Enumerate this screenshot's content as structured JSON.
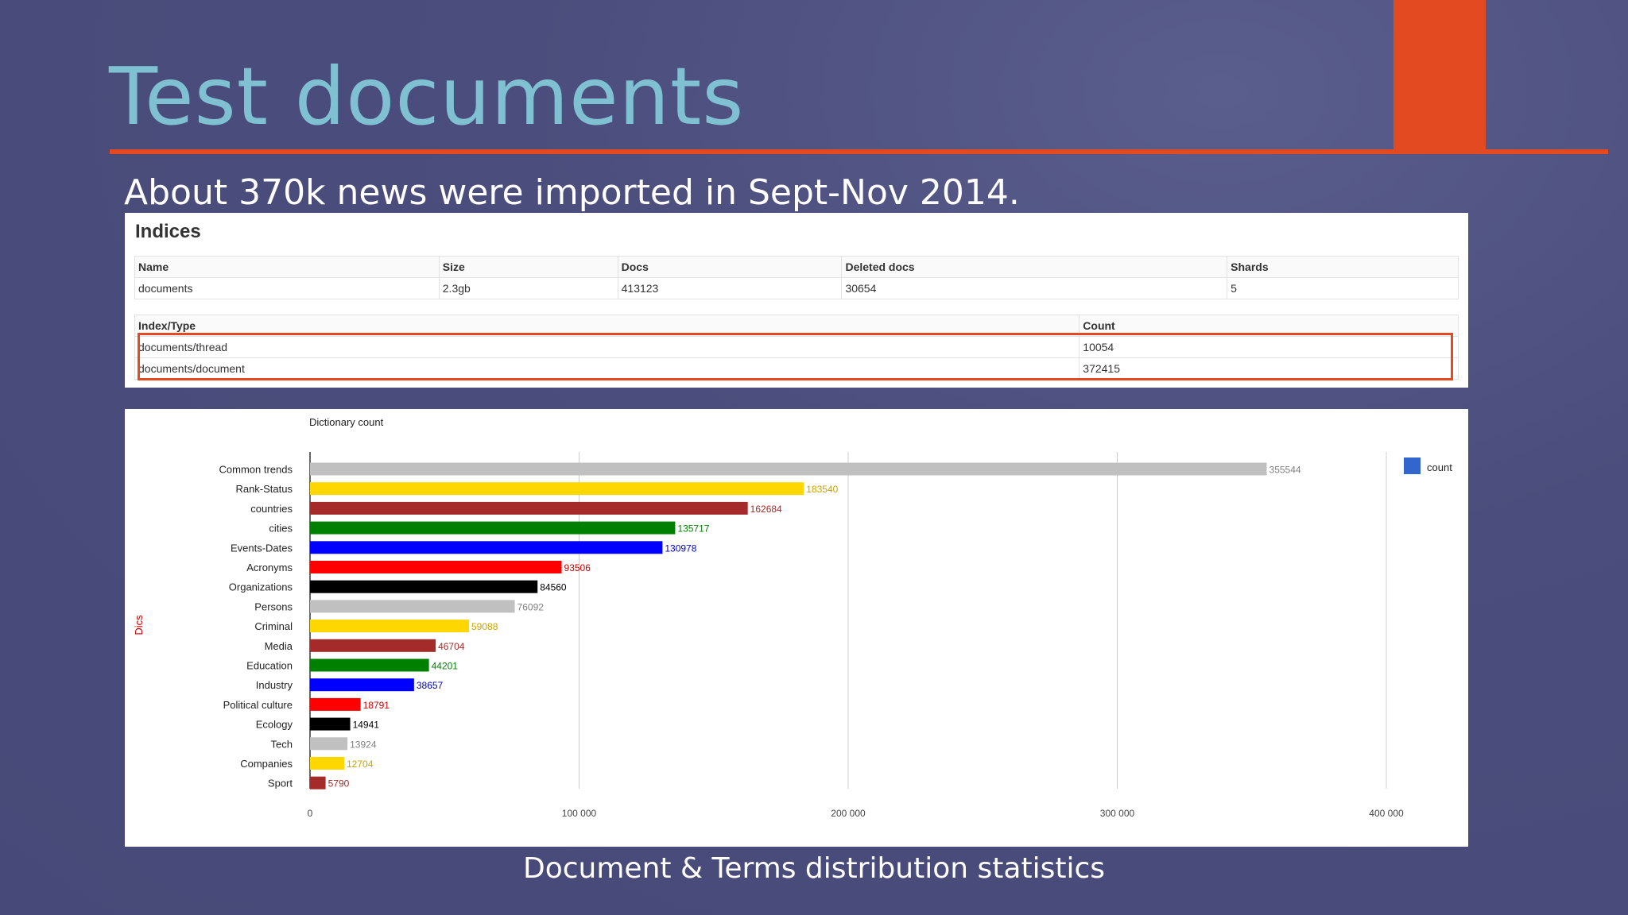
{
  "slide": {
    "title": "Test documents",
    "subtitle": "About 370k news were imported in Sept-Nov 2014.",
    "caption": "Document & Terms distribution statistics"
  },
  "indices": {
    "heading": "Indices",
    "columns": [
      "Name",
      "Size",
      "Docs",
      "Deleted docs",
      "Shards"
    ],
    "rows": [
      [
        "documents",
        "2.3gb",
        "413123",
        "30654",
        "5"
      ]
    ]
  },
  "types": {
    "columns": [
      "Index/Type",
      "Count"
    ],
    "rows": [
      [
        "documents/thread",
        "10054"
      ],
      [
        "documents/document",
        "372415"
      ]
    ]
  },
  "colors": {
    "accent": "#e34a22",
    "title": "#7fc1d3",
    "legend": "#3366cc"
  },
  "chart_data": {
    "type": "bar",
    "orientation": "horizontal",
    "title": "Dictionary count",
    "ylabel": "Dics",
    "xlabel": "",
    "xlim": [
      0,
      400000
    ],
    "xticks": [
      0,
      100000,
      200000,
      300000,
      400000
    ],
    "xtick_labels": [
      "0",
      "100 000",
      "200 000",
      "300 000",
      "400 000"
    ],
    "grid": true,
    "legend": {
      "position": "top-right",
      "entries": [
        "count"
      ]
    },
    "categories": [
      "Common trends",
      "Rank-Status",
      "countries",
      "cities",
      "Events-Dates",
      "Acronyms",
      "Organizations",
      "Persons",
      "Criminal",
      "Media",
      "Education",
      "Industry",
      "Political culture",
      "Ecology",
      "Tech",
      "Companies",
      "Sport"
    ],
    "values": [
      355544,
      183540,
      162684,
      135717,
      130978,
      93506,
      84560,
      76092,
      59088,
      46704,
      44201,
      38657,
      18791,
      14941,
      13924,
      12704,
      5790
    ],
    "bar_colors": [
      "#c0c0c0",
      "#ffd700",
      "#a52a2a",
      "#008000",
      "#0000ff",
      "#ff0000",
      "#000000",
      "#c0c0c0",
      "#ffd700",
      "#a52a2a",
      "#008000",
      "#0000ff",
      "#ff0000",
      "#000000",
      "#c0c0c0",
      "#ffd700",
      "#a52a2a"
    ],
    "label_colors": [
      "#808080",
      "#c9a400",
      "#a52a2a",
      "#008000",
      "#0000cc",
      "#cc0000",
      "#000000",
      "#808080",
      "#c9a400",
      "#a52a2a",
      "#008000",
      "#0000cc",
      "#cc0000",
      "#000000",
      "#808080",
      "#c9a400",
      "#a52a2a"
    ]
  }
}
